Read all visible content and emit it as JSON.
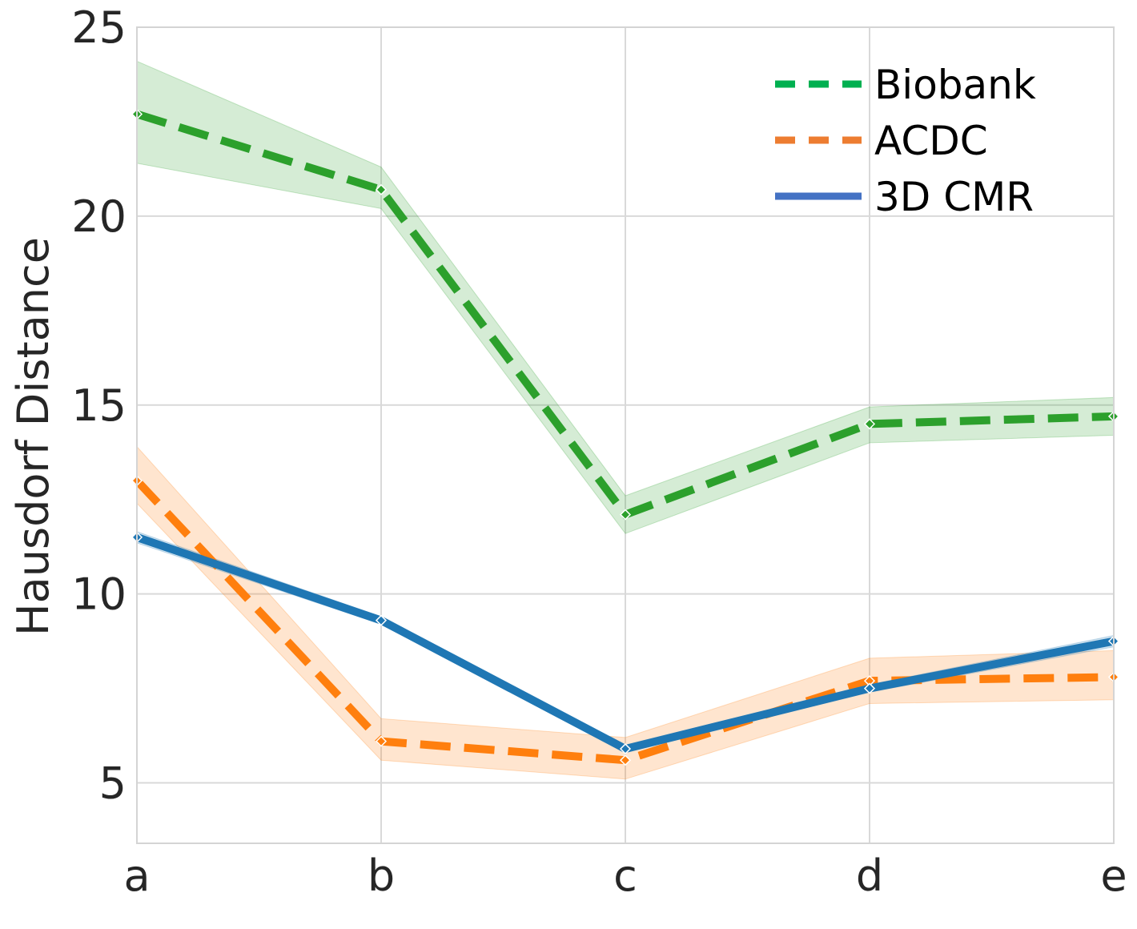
{
  "chart_data": {
    "type": "line",
    "title": "",
    "xlabel": "",
    "ylabel": "Hausdorf Distance",
    "categories": [
      "a",
      "b",
      "c",
      "d",
      "e"
    ],
    "ylim": [
      3.4,
      25
    ],
    "yticks": [
      5,
      10,
      15,
      20,
      25
    ],
    "grid": true,
    "legend_position": "top-right",
    "series": [
      {
        "name": "Biobank",
        "style": "dashed",
        "color": "#2ca02c",
        "legend_color": "#00b050",
        "band_color": "#2ca02c",
        "values": [
          22.7,
          20.7,
          12.1,
          14.5,
          14.7
        ],
        "lower": [
          21.4,
          20.2,
          11.6,
          14.0,
          14.2
        ],
        "upper": [
          24.1,
          21.3,
          12.6,
          14.95,
          15.2
        ]
      },
      {
        "name": "ACDC",
        "style": "dashed",
        "color": "#ff7f0e",
        "legend_color": "#ed7d31",
        "band_color": "#ff7f0e",
        "values": [
          13.0,
          6.1,
          5.6,
          7.7,
          7.8
        ],
        "lower": [
          12.4,
          5.6,
          5.1,
          7.1,
          7.2
        ],
        "upper": [
          13.9,
          6.7,
          6.2,
          8.3,
          8.5
        ]
      },
      {
        "name": "3D CMR",
        "style": "solid",
        "color": "#1f77b4",
        "legend_color": "#4472c4",
        "band_color": "#1f77b4",
        "values": [
          11.5,
          9.3,
          5.9,
          7.5,
          8.75
        ],
        "lower": [
          11.35,
          9.2,
          5.8,
          7.4,
          8.6
        ],
        "upper": [
          11.65,
          9.4,
          6.0,
          7.6,
          8.9
        ]
      }
    ]
  }
}
